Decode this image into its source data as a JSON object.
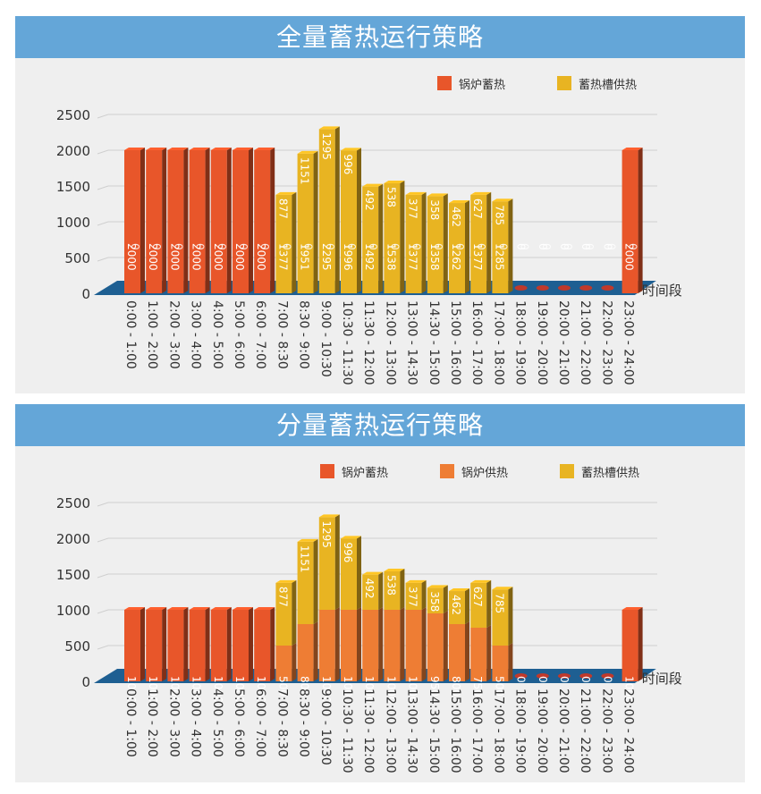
{
  "colors": {
    "header_bg": "#64a6d8",
    "panel_bg": "#efefef",
    "boiler_storage": "#e8562a",
    "boiler_supply": "#ee7d34",
    "tank_supply": "#e8b422",
    "floor": "#1e5f92",
    "axis_text": "#333333",
    "grid": "#cfcfcf"
  },
  "chart_data": [
    {
      "type": "bar",
      "stacked": true,
      "title": "全量蓄热运行策略",
      "xlabel": "时间段",
      "ylabel": "",
      "ylim": [
        0,
        2500
      ],
      "yticks": [
        0,
        500,
        1000,
        1500,
        2000,
        2500
      ],
      "grid": true,
      "legend": "top-right",
      "categories": [
        "0:00 - 1:00",
        "1:00 - 2:00",
        "2:00 - 3:00",
        "3:00 - 4:00",
        "4:00 - 5:00",
        "5:00 - 6:00",
        "6:00 - 7:00",
        "7:00 - 8:30",
        "8:30 - 9:00",
        "9:00 - 10:30",
        "10:30 - 11:30",
        "11:30 - 12:00",
        "12:00 - 13:00",
        "13:00 - 14:30",
        "14:30 - 15:00",
        "15:00 - 16:00",
        "16:00 - 17:00",
        "17:00 - 18:00",
        "18:00 - 19:00",
        "19:00 - 20:00",
        "20:00 - 21:00",
        "21:00 - 22:00",
        "22:00 - 23:00",
        "23:00 - 24:00"
      ],
      "series": [
        {
          "name": "锅炉蓄热",
          "color_key": "boiler_storage",
          "values": [
            2000,
            2000,
            2000,
            2000,
            2000,
            2000,
            2000,
            0,
            0,
            0,
            0,
            0,
            0,
            0,
            0,
            0,
            0,
            0,
            0,
            0,
            0,
            0,
            0,
            2000
          ]
        },
        {
          "name": "蓄热槽供热",
          "color_key": "tank_supply",
          "values": [
            0,
            0,
            0,
            0,
            0,
            0,
            0,
            1377,
            1951,
            2295,
            1996,
            1492,
            1538,
            1377,
            1358,
            1262,
            1377,
            1285,
            0,
            0,
            0,
            0,
            0,
            0
          ]
        }
      ],
      "data_labels": [
        [
          "2000",
          "0",
          "0"
        ],
        [
          "2000",
          "0",
          "0"
        ],
        [
          "2000",
          "0",
          "0"
        ],
        [
          "2000",
          "0",
          "0"
        ],
        [
          "2000",
          "0",
          "0"
        ],
        [
          "2000",
          "0",
          "0"
        ],
        [
          "2000",
          "0",
          "0"
        ],
        [
          "0",
          "877",
          "1377"
        ],
        [
          "0",
          "1151",
          "1951"
        ],
        [
          "0",
          "1295",
          "2295"
        ],
        [
          "0",
          "996",
          "1996"
        ],
        [
          "0",
          "492",
          "1492"
        ],
        [
          "0",
          "538",
          "1538"
        ],
        [
          "0",
          "377",
          "1377"
        ],
        [
          "0",
          "358",
          "1358"
        ],
        [
          "0",
          "462",
          "1262"
        ],
        [
          "0",
          "627",
          "1377"
        ],
        [
          "0",
          "785",
          "1285"
        ],
        [
          "0",
          "0",
          "0"
        ],
        [
          "0",
          "0",
          "0"
        ],
        [
          "0",
          "0",
          "0"
        ],
        [
          "0",
          "0",
          "0"
        ],
        [
          "0",
          "0",
          "0"
        ],
        [
          "2000",
          "0",
          "0"
        ]
      ]
    },
    {
      "type": "bar",
      "stacked": true,
      "title": "分量蓄热运行策略",
      "xlabel": "时间段",
      "ylabel": "",
      "ylim": [
        0,
        2500
      ],
      "yticks": [
        0,
        500,
        1000,
        1500,
        2000,
        2500
      ],
      "grid": true,
      "legend": "top-right",
      "categories": [
        "0:00 - 1:00",
        "1:00 - 2:00",
        "2:00 - 3:00",
        "3:00 - 4:00",
        "4:00 - 5:00",
        "5:00 - 6:00",
        "6:00 - 7:00",
        "7:00 - 8:30",
        "8:30 - 9:00",
        "9:00 - 10:30",
        "10:30 - 11:30",
        "11:30 - 12:00",
        "12:00 - 13:00",
        "13:00 - 14:30",
        "14:30 - 15:00",
        "15:00 - 16:00",
        "16:00 - 17:00",
        "17:00 - 18:00",
        "18:00 - 19:00",
        "19:00 - 20:00",
        "20:00 - 21:00",
        "21:00 - 22:00",
        "22:00 - 23:00",
        "23:00 - 24:00"
      ],
      "series": [
        {
          "name": "锅炉蓄热",
          "color_key": "boiler_storage",
          "values": [
            1000,
            1000,
            1000,
            1000,
            1000,
            1000,
            1000,
            0,
            0,
            0,
            0,
            0,
            0,
            0,
            0,
            0,
            0,
            0,
            0,
            0,
            0,
            0,
            0,
            1000
          ]
        },
        {
          "name": "锅炉供热",
          "color_key": "boiler_supply",
          "values": [
            0,
            0,
            0,
            0,
            0,
            0,
            0,
            500,
            800,
            1000,
            1000,
            1000,
            1000,
            1000,
            950,
            800,
            750,
            500,
            0,
            0,
            0,
            0,
            0,
            0
          ]
        },
        {
          "name": "蓄热槽供热",
          "color_key": "tank_supply",
          "values": [
            0,
            0,
            0,
            0,
            0,
            0,
            0,
            877,
            1151,
            1295,
            996,
            492,
            538,
            377,
            358,
            462,
            627,
            785,
            0,
            0,
            0,
            0,
            0,
            0
          ]
        }
      ],
      "data_labels": [
        [
          "1000"
        ],
        [
          "1000"
        ],
        [
          "1000"
        ],
        [
          "1000"
        ],
        [
          "1000"
        ],
        [
          "1000"
        ],
        [
          "1000"
        ],
        [
          "500",
          "877"
        ],
        [
          "800",
          "1151"
        ],
        [
          "1000",
          "1295"
        ],
        [
          "1000",
          "996"
        ],
        [
          "1000",
          "492"
        ],
        [
          "1000",
          "538"
        ],
        [
          "1000",
          "377"
        ],
        [
          "950",
          "358"
        ],
        [
          "800",
          "462"
        ],
        [
          "750",
          "627"
        ],
        [
          "500",
          "785"
        ],
        [
          "0"
        ],
        [
          "0"
        ],
        [
          "0"
        ],
        [
          "0"
        ],
        [
          "0"
        ],
        [
          "1000"
        ]
      ]
    }
  ]
}
